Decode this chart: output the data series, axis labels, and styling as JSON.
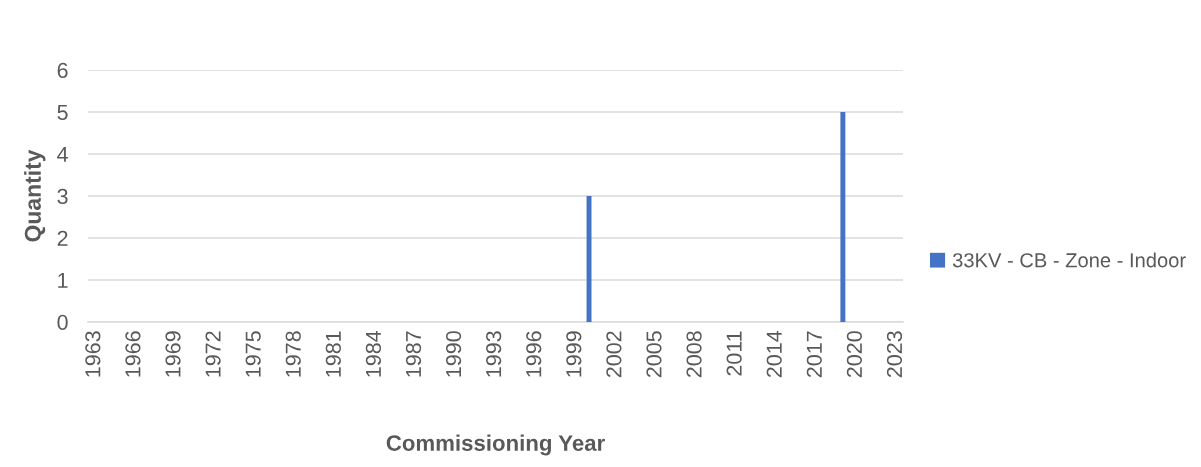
{
  "chart_data": {
    "type": "bar",
    "xlabel": "Commissioning Year",
    "ylabel": "Quantity",
    "categories": [
      "1963",
      null,
      null,
      "1966",
      null,
      null,
      "1969",
      null,
      null,
      "1972",
      null,
      null,
      "1975",
      null,
      null,
      "1978",
      null,
      null,
      "1981",
      null,
      null,
      "1984",
      null,
      null,
      "1987",
      null,
      null,
      "1990",
      null,
      null,
      "1993",
      null,
      null,
      "1996",
      null,
      null,
      "1999",
      null,
      null,
      "2002",
      null,
      null,
      "2005",
      null,
      null,
      "2008",
      null,
      null,
      "2011",
      null,
      null,
      "2014",
      null,
      null,
      "2017",
      null,
      null,
      "2020",
      null,
      null,
      "2023"
    ],
    "series": [
      {
        "name": "33KV - CB - Zone - Indoor",
        "color": "#4472c4",
        "values": [
          null,
          null,
          null,
          null,
          null,
          null,
          null,
          null,
          null,
          null,
          null,
          null,
          null,
          null,
          null,
          null,
          null,
          null,
          null,
          null,
          null,
          null,
          null,
          null,
          null,
          null,
          null,
          null,
          null,
          null,
          null,
          null,
          null,
          null,
          null,
          null,
          null,
          3,
          null,
          null,
          null,
          null,
          null,
          null,
          null,
          null,
          null,
          null,
          null,
          null,
          null,
          null,
          null,
          null,
          null,
          null,
          5,
          null,
          null,
          null,
          null
        ]
      }
    ],
    "ylim": [
      0,
      6
    ],
    "yticks": [
      0,
      1,
      2,
      3,
      4,
      5,
      6
    ],
    "grid": "y",
    "legend": "right"
  }
}
